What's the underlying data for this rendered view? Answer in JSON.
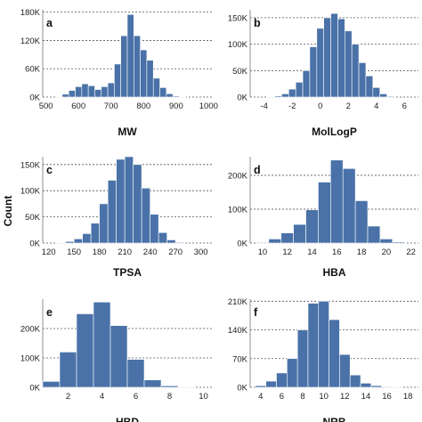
{
  "figure": {
    "y_label": "Count"
  },
  "chart_data": [
    {
      "type": "bar",
      "panel_label": "a",
      "xlabel": "MW",
      "ylabel": "Count",
      "bin_width": 20,
      "x": [
        520,
        540,
        560,
        580,
        600,
        620,
        640,
        660,
        680,
        700,
        720,
        740,
        760,
        780,
        800,
        820,
        840,
        860,
        880,
        900,
        920
      ],
      "values": [
        0,
        1000,
        6000,
        14000,
        22000,
        28000,
        24000,
        16000,
        22000,
        30000,
        70000,
        130000,
        175000,
        130000,
        100000,
        78000,
        40000,
        20000,
        7000,
        2000,
        500
      ],
      "xlim": [
        490,
        1010
      ],
      "ylim": [
        0,
        185000
      ],
      "xticks": [
        "500",
        "600",
        "700",
        "800",
        "900",
        "1000"
      ],
      "xtick_values": [
        500,
        600,
        700,
        800,
        900,
        1000
      ],
      "yticks": [
        "0K",
        "60K",
        "120K",
        "180K"
      ],
      "ytick_values": [
        0,
        60000,
        120000,
        180000
      ]
    },
    {
      "type": "bar",
      "panel_label": "b",
      "xlabel": "MolLogP",
      "ylabel": "Count",
      "bin_width": 0.5,
      "x": [
        -3.5,
        -3,
        -2.5,
        -2,
        -1.5,
        -1,
        -0.5,
        0,
        0.5,
        1,
        1.5,
        2,
        2.5,
        3,
        3.5,
        4,
        4.5,
        5
      ],
      "values": [
        500,
        2000,
        6000,
        15000,
        28000,
        50000,
        95000,
        130000,
        150000,
        158000,
        148000,
        125000,
        100000,
        65000,
        40000,
        18000,
        6000,
        1500
      ],
      "xlim": [
        -5,
        7
      ],
      "ylim": [
        0,
        165000
      ],
      "xticks": [
        "-4",
        "-2",
        "0",
        "2",
        "4",
        "6"
      ],
      "xtick_values": [
        -4,
        -2,
        0,
        2,
        4,
        6
      ],
      "yticks": [
        "0K",
        "50K",
        "100K",
        "150K"
      ],
      "ytick_values": [
        0,
        50000,
        100000,
        150000
      ]
    },
    {
      "type": "bar",
      "panel_label": "c",
      "xlabel": "TPSA",
      "ylabel": "Count",
      "bin_width": 10,
      "x": [
        135,
        145,
        155,
        165,
        175,
        185,
        195,
        205,
        215,
        225,
        235,
        245,
        255,
        265,
        275
      ],
      "values": [
        1000,
        3000,
        8000,
        18000,
        38000,
        75000,
        120000,
        160000,
        165000,
        150000,
        105000,
        55000,
        20000,
        6000,
        1500
      ],
      "xlim": [
        113,
        313
      ],
      "ylim": [
        0,
        165000
      ],
      "xticks": [
        "120",
        "150",
        "180",
        "210",
        "240",
        "270",
        "300"
      ],
      "xtick_values": [
        120,
        150,
        180,
        210,
        240,
        270,
        300
      ],
      "yticks": [
        "0K",
        "50K",
        "100K",
        "150K"
      ],
      "ytick_values": [
        0,
        50000,
        100000,
        150000
      ]
    },
    {
      "type": "bar",
      "panel_label": "d",
      "xlabel": "HBA",
      "ylabel": "Count",
      "bin_width": 1,
      "x": [
        10,
        11,
        12,
        13,
        14,
        15,
        16,
        17,
        18,
        19,
        20,
        21
      ],
      "values": [
        2000,
        12000,
        30000,
        55000,
        98000,
        180000,
        245000,
        220000,
        125000,
        50000,
        12000,
        3000
      ],
      "xlim": [
        9,
        22.6
      ],
      "ylim": [
        0,
        255000
      ],
      "xticks": [
        "10",
        "12",
        "14",
        "16",
        "18",
        "20",
        "22"
      ],
      "xtick_values": [
        10,
        12,
        14,
        16,
        18,
        20,
        22
      ],
      "yticks": [
        "0K",
        "100K",
        "200K"
      ],
      "ytick_values": [
        0,
        100000,
        200000
      ]
    },
    {
      "type": "bar",
      "panel_label": "e",
      "xlabel": "HBD",
      "ylabel": "Count",
      "bin_width": 1,
      "x": [
        1,
        2,
        3,
        4,
        5,
        6,
        7,
        8,
        9
      ],
      "values": [
        20000,
        120000,
        250000,
        290000,
        210000,
        95000,
        25000,
        5000,
        1000
      ],
      "xlim": [
        0.5,
        10.5
      ],
      "ylim": [
        0,
        300000
      ],
      "xticks": [
        "2",
        "4",
        "6",
        "8",
        "10"
      ],
      "xtick_values": [
        2,
        4,
        6,
        8,
        10
      ],
      "yticks": [
        "0K",
        "100K",
        "200K"
      ],
      "ytick_values": [
        0,
        100000,
        200000
      ]
    },
    {
      "type": "bar",
      "panel_label": "f",
      "xlabel": "NRB",
      "ylabel": "Count",
      "bin_width": 1,
      "x": [
        4,
        5,
        6,
        7,
        8,
        9,
        10,
        11,
        12,
        13,
        14,
        15,
        16,
        17
      ],
      "values": [
        4000,
        15000,
        35000,
        70000,
        140000,
        205000,
        210000,
        165000,
        80000,
        30000,
        10000,
        4000,
        1500,
        500
      ],
      "xlim": [
        3,
        19
      ],
      "ylim": [
        0,
        215000
      ],
      "xticks": [
        "4",
        "6",
        "8",
        "10",
        "12",
        "14",
        "16",
        "18"
      ],
      "xtick_values": [
        4,
        6,
        8,
        10,
        12,
        14,
        16,
        18
      ],
      "yticks": [
        "0K",
        "70K",
        "140K",
        "210K"
      ],
      "ytick_values": [
        0,
        70000,
        140000,
        210000
      ]
    }
  ]
}
